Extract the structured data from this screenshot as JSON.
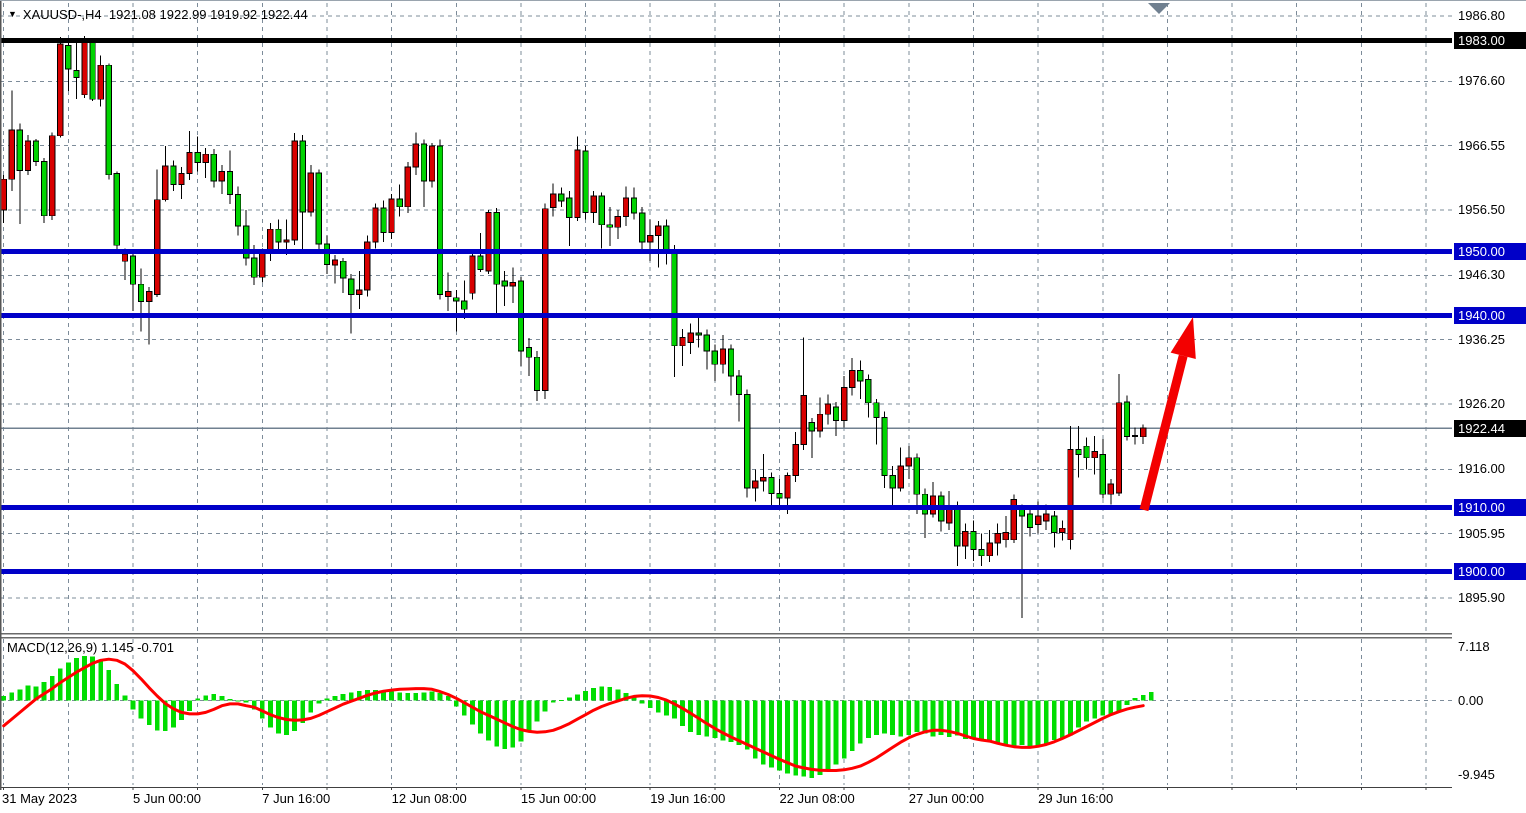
{
  "title": {
    "symbol_period": "XAUUSD-,H4",
    "open": "1921.08",
    "high": "1922.99",
    "low": "1919.92",
    "close": "1922.44"
  },
  "icons": {
    "triangle_down": "▼"
  },
  "macd_panel": {
    "label_name": "MACD(12,26,9)",
    "macd_value": "1.145",
    "signal_value": "-0.701"
  },
  "colors": {
    "background": "#ffffff",
    "grid": "#7d8c9a",
    "candle_up": "#d80000",
    "candle_down": "#00d300",
    "candle_border": "#000000",
    "wick": "#000000",
    "level_blue": "#0000c8",
    "level_black": "#000000",
    "current_price_line": "#708090",
    "badge_black": "#000000",
    "badge_blue": "#0000c8",
    "macd_hist": "#00dd00",
    "macd_signal": "#ff0000",
    "arrow_red": "#f30000",
    "shift_marker": "#708090",
    "frame": "#6a6a6a"
  },
  "price_axis": {
    "ticks": [
      {
        "text": "1986.80",
        "value": 1986.8
      },
      {
        "text": "1976.60",
        "value": 1976.6
      },
      {
        "text": "1966.55",
        "value": 1966.55
      },
      {
        "text": "1956.50",
        "value": 1956.5
      },
      {
        "text": "1946.30",
        "value": 1946.3
      },
      {
        "text": "1936.25",
        "value": 1936.25
      },
      {
        "text": "1926.20",
        "value": 1926.2
      },
      {
        "text": "1916.00",
        "value": 1916.0
      },
      {
        "text": "1905.95",
        "value": 1905.95
      },
      {
        "text": "1895.90",
        "value": 1895.9
      }
    ],
    "badges": [
      {
        "text": "1983.00",
        "value": 1983.0,
        "type": "black"
      },
      {
        "text": "1950.00",
        "value": 1950.0,
        "type": "blue"
      },
      {
        "text": "1940.00",
        "value": 1940.0,
        "type": "blue"
      },
      {
        "text": "1922.44",
        "value": 1922.44,
        "type": "black"
      },
      {
        "text": "1910.00",
        "value": 1910.0,
        "type": "blue"
      },
      {
        "text": "1900.00",
        "value": 1900.0,
        "type": "blue"
      }
    ],
    "macd_ticks": [
      {
        "text": "7.118",
        "value": 7.118
      },
      {
        "text": "0.00",
        "value": 0.0
      },
      {
        "text": "-9.945",
        "value": -9.945
      }
    ]
  },
  "time_axis": {
    "labels": [
      {
        "text": "31 May 2023",
        "grid": 0
      },
      {
        "text": "5 Jun 00:00",
        "grid": 2
      },
      {
        "text": "7 Jun 16:00",
        "grid": 4
      },
      {
        "text": "12 Jun 08:00",
        "grid": 6
      },
      {
        "text": "15 Jun 00:00",
        "grid": 8
      },
      {
        "text": "19 Jun 16:00",
        "grid": 10
      },
      {
        "text": "22 Jun 08:00",
        "grid": 12
      },
      {
        "text": "27 Jun 00:00",
        "grid": 14
      },
      {
        "text": "29 Jun 16:00",
        "grid": 16
      }
    ],
    "grid_count": 23
  },
  "chart_data": {
    "type": "candlestick+macd",
    "symbol": "XAUUSD-",
    "timeframe": "H4",
    "note": "up candles red, down candles green; horizontal support/resistance lines and red projection arrow drawn as objects",
    "price_range_visible": [
      1890.0,
      1988.9
    ],
    "levels": {
      "black_line": 1983.0,
      "blue_lines": [
        1950.0,
        1940.0,
        1910.0,
        1900.0
      ],
      "current_price": 1922.44
    },
    "arrow": {
      "from_price": 1909.5,
      "to_price": 1939.5,
      "color": "#f30000"
    },
    "current_bar": {
      "open": 1921.08,
      "high": 1922.99,
      "low": 1919.92,
      "close": 1922.44
    },
    "candles": [
      [
        1956.5,
        1962.0,
        1954.5,
        1961.3
      ],
      [
        1961.3,
        1975.2,
        1959.5,
        1969.0
      ],
      [
        1969.0,
        1970.0,
        1954.3,
        1962.7
      ],
      [
        1962.7,
        1968.2,
        1962.0,
        1967.3
      ],
      [
        1967.3,
        1967.6,
        1963.4,
        1964.1
      ],
      [
        1964.1,
        1964.6,
        1954.5,
        1955.6
      ],
      [
        1955.6,
        1968.6,
        1954.9,
        1968.1
      ],
      [
        1968.1,
        1983.5,
        1967.8,
        1982.4
      ],
      [
        1982.2,
        1983.0,
        1975.1,
        1978.5
      ],
      [
        1978.3,
        1982.7,
        1973.8,
        1977.2
      ],
      [
        1974.5,
        1983.7,
        1974.0,
        1982.9
      ],
      [
        1982.8,
        1983.2,
        1973.5,
        1973.8
      ],
      [
        1973.8,
        1980.6,
        1972.7,
        1979.1
      ],
      [
        1979.1,
        1979.4,
        1961.3,
        1962.0
      ],
      [
        1962.2,
        1962.5,
        1950.0,
        1951.0
      ],
      [
        1948.5,
        1950.5,
        1945.6,
        1949.6
      ],
      [
        1949.3,
        1949.8,
        1940.7,
        1944.9
      ],
      [
        1944.9,
        1947.4,
        1937.5,
        1942.2
      ],
      [
        1942.2,
        1944.5,
        1935.5,
        1943.8
      ],
      [
        1943.3,
        1962.8,
        1942.9,
        1958.1
      ],
      [
        1958.1,
        1966.5,
        1957.8,
        1963.4
      ],
      [
        1963.4,
        1964.2,
        1959.5,
        1960.5
      ],
      [
        1960.5,
        1963.2,
        1958.2,
        1962.2
      ],
      [
        1962.2,
        1968.8,
        1961.2,
        1965.5
      ],
      [
        1965.5,
        1968.0,
        1962.5,
        1963.9
      ],
      [
        1963.9,
        1966.2,
        1961.5,
        1965.2
      ],
      [
        1965.2,
        1966.0,
        1960.0,
        1961.0
      ],
      [
        1961.0,
        1963.5,
        1959.0,
        1962.5
      ],
      [
        1962.5,
        1965.8,
        1957.4,
        1958.9
      ],
      [
        1958.9,
        1960.2,
        1952.5,
        1954.0
      ],
      [
        1954.0,
        1956.5,
        1947.8,
        1949.0
      ],
      [
        1949.0,
        1951.0,
        1944.8,
        1946.0
      ],
      [
        1946.0,
        1950.5,
        1945.2,
        1949.8
      ],
      [
        1949.8,
        1954.5,
        1948.5,
        1953.5
      ],
      [
        1953.5,
        1955.0,
        1950.0,
        1951.5
      ],
      [
        1951.5,
        1955.0,
        1949.5,
        1951.8
      ],
      [
        1951.8,
        1968.5,
        1951.0,
        1967.3
      ],
      [
        1967.3,
        1968.2,
        1949.8,
        1956.2
      ],
      [
        1956.2,
        1963.5,
        1955.5,
        1962.3
      ],
      [
        1962.3,
        1962.8,
        1950.0,
        1951.2
      ],
      [
        1951.2,
        1952.5,
        1946.5,
        1948.0
      ],
      [
        1947.9,
        1949.5,
        1945.0,
        1948.7
      ],
      [
        1948.5,
        1949.0,
        1943.5,
        1945.9
      ],
      [
        1945.7,
        1946.5,
        1937.2,
        1943.3
      ],
      [
        1943.3,
        1947.0,
        1941.0,
        1944.0
      ],
      [
        1944.0,
        1952.5,
        1943.0,
        1951.5
      ],
      [
        1951.5,
        1957.5,
        1950.5,
        1956.8
      ],
      [
        1956.8,
        1958.0,
        1951.5,
        1953.0
      ],
      [
        1953.0,
        1959.0,
        1952.0,
        1958.2
      ],
      [
        1958.2,
        1960.5,
        1955.5,
        1957.0
      ],
      [
        1957.0,
        1964.0,
        1956.0,
        1963.2
      ],
      [
        1963.2,
        1968.6,
        1962.0,
        1966.8
      ],
      [
        1966.8,
        1967.5,
        1957.0,
        1961.0
      ],
      [
        1961.0,
        1967.0,
        1960.0,
        1966.5
      ],
      [
        1966.5,
        1967.5,
        1942.5,
        1943.3
      ],
      [
        1943.0,
        1946.7,
        1940.7,
        1943.8
      ],
      [
        1942.8,
        1944.0,
        1937.5,
        1942.3
      ],
      [
        1942.3,
        1945.5,
        1939.5,
        1941.0
      ],
      [
        1943.5,
        1950.0,
        1942.5,
        1949.3
      ],
      [
        1949.3,
        1952.9,
        1946.8,
        1947.2
      ],
      [
        1947.0,
        1956.5,
        1946.5,
        1956.1
      ],
      [
        1956.1,
        1956.8,
        1940.2,
        1944.9
      ],
      [
        1945.4,
        1947.0,
        1941.5,
        1944.6
      ],
      [
        1944.6,
        1947.5,
        1942.0,
        1945.2
      ],
      [
        1945.4,
        1946.0,
        1932.1,
        1934.5
      ],
      [
        1935.0,
        1936.5,
        1930.6,
        1933.5
      ],
      [
        1933.5,
        1934.5,
        1926.7,
        1928.3
      ],
      [
        1928.3,
        1957.5,
        1927.0,
        1956.7
      ],
      [
        1956.9,
        1960.6,
        1955.5,
        1959.0
      ],
      [
        1959.0,
        1960.0,
        1957.0,
        1957.9
      ],
      [
        1958.4,
        1959.5,
        1950.9,
        1955.3
      ],
      [
        1955.3,
        1968.0,
        1954.8,
        1965.9
      ],
      [
        1965.7,
        1966.5,
        1955.0,
        1956.1
      ],
      [
        1956.1,
        1959.5,
        1954.5,
        1958.7
      ],
      [
        1958.7,
        1959.2,
        1950.5,
        1954.2
      ],
      [
        1954.2,
        1957.0,
        1950.9,
        1953.8
      ],
      [
        1953.8,
        1956.5,
        1952.0,
        1955.5
      ],
      [
        1955.5,
        1960.2,
        1954.0,
        1958.4
      ],
      [
        1958.4,
        1960.0,
        1955.0,
        1956.0
      ],
      [
        1956.0,
        1957.0,
        1949.6,
        1951.5
      ],
      [
        1951.5,
        1955.0,
        1948.5,
        1952.5
      ],
      [
        1952.5,
        1954.8,
        1947.5,
        1954.0
      ],
      [
        1954.0,
        1955.0,
        1948.0,
        1950.2
      ],
      [
        1950.2,
        1951.0,
        1930.4,
        1935.3
      ],
      [
        1935.3,
        1937.9,
        1932.1,
        1936.6
      ],
      [
        1935.8,
        1938.8,
        1934.0,
        1937.3
      ],
      [
        1937.3,
        1939.8,
        1935.0,
        1937.0
      ],
      [
        1937.0,
        1937.8,
        1931.6,
        1934.5
      ],
      [
        1934.5,
        1935.5,
        1929.8,
        1932.4
      ],
      [
        1932.4,
        1937.0,
        1931.0,
        1934.8
      ],
      [
        1934.8,
        1935.5,
        1927.5,
        1930.6
      ],
      [
        1930.6,
        1931.5,
        1923.5,
        1927.7
      ],
      [
        1927.7,
        1928.5,
        1911.6,
        1913.1
      ],
      [
        1913.1,
        1916.0,
        1911.0,
        1914.2
      ],
      [
        1914.2,
        1918.4,
        1912.5,
        1914.7
      ],
      [
        1914.7,
        1915.5,
        1910.4,
        1912.2
      ],
      [
        1912.2,
        1914.5,
        1909.8,
        1911.5
      ],
      [
        1911.5,
        1915.5,
        1909.0,
        1915.0
      ],
      [
        1915.0,
        1921.8,
        1914.0,
        1919.9
      ],
      [
        1919.9,
        1936.6,
        1919.0,
        1927.5
      ],
      [
        1923.3,
        1924.0,
        1917.8,
        1922.0
      ],
      [
        1922.0,
        1927.2,
        1921.0,
        1924.6
      ],
      [
        1924.6,
        1927.7,
        1923.0,
        1926.2
      ],
      [
        1925.7,
        1926.5,
        1921.2,
        1923.6
      ],
      [
        1923.6,
        1930.6,
        1922.5,
        1928.8
      ],
      [
        1928.8,
        1933.4,
        1927.5,
        1931.4
      ],
      [
        1931.4,
        1933.0,
        1927.0,
        1929.8
      ],
      [
        1930.0,
        1930.8,
        1924.1,
        1926.4
      ],
      [
        1926.4,
        1927.0,
        1919.9,
        1924.1
      ],
      [
        1924.1,
        1925.0,
        1913.1,
        1915.0
      ],
      [
        1915.0,
        1916.5,
        1910.0,
        1913.1
      ],
      [
        1913.1,
        1919.4,
        1912.5,
        1916.5
      ],
      [
        1916.5,
        1919.6,
        1914.5,
        1917.8
      ],
      [
        1917.8,
        1918.5,
        1909.0,
        1912.1
      ],
      [
        1912.1,
        1913.0,
        1905.3,
        1909.0
      ],
      [
        1909.0,
        1914.0,
        1908.5,
        1911.8
      ],
      [
        1911.8,
        1912.5,
        1906.3,
        1907.9
      ],
      [
        1907.6,
        1912.6,
        1906.5,
        1910.2
      ],
      [
        1910.2,
        1911.0,
        1900.9,
        1904.0
      ],
      [
        1904.0,
        1907.5,
        1902.0,
        1906.3
      ],
      [
        1906.3,
        1908.0,
        1901.7,
        1903.5
      ],
      [
        1903.5,
        1906.0,
        1900.9,
        1902.5
      ],
      [
        1902.5,
        1906.5,
        1901.5,
        1904.5
      ],
      [
        1904.5,
        1907.5,
        1902.5,
        1906.0
      ],
      [
        1905.0,
        1908.7,
        1903.8,
        1906.1
      ],
      [
        1905.0,
        1912.1,
        1904.5,
        1911.3
      ],
      [
        1909.7,
        1910.5,
        1892.8,
        1908.7
      ],
      [
        1909.0,
        1909.8,
        1905.5,
        1906.9
      ],
      [
        1907.4,
        1911.0,
        1906.0,
        1908.7
      ],
      [
        1907.9,
        1910.5,
        1906.5,
        1909.0
      ],
      [
        1908.7,
        1909.5,
        1903.8,
        1906.1
      ],
      [
        1906.1,
        1908.0,
        1904.9,
        1906.8
      ],
      [
        1905.0,
        1922.8,
        1903.5,
        1919.1
      ],
      [
        1919.1,
        1922.8,
        1914.7,
        1918.3
      ],
      [
        1919.6,
        1921.0,
        1916.0,
        1917.8
      ],
      [
        1917.8,
        1921.2,
        1915.2,
        1918.8
      ],
      [
        1918.3,
        1920.7,
        1911.4,
        1912.1
      ],
      [
        1912.1,
        1914.5,
        1910.5,
        1913.7
      ],
      [
        1912.3,
        1930.9,
        1911.8,
        1926.4
      ],
      [
        1926.5,
        1927.5,
        1920.5,
        1921.1
      ],
      [
        1921.1,
        1922.5,
        1919.9,
        1921.3
      ],
      [
        1921.08,
        1922.99,
        1919.92,
        1922.44
      ]
    ],
    "macd": {
      "params": "12,26,9",
      "macd_current": 1.145,
      "signal_current": -0.701,
      "axis_range": [
        -9.945,
        7.118
      ],
      "histogram": [
        0.6,
        1.1,
        1.5,
        2.0,
        1.9,
        2.5,
        3.3,
        4.3,
        5.1,
        5.7,
        6.0,
        5.9,
        5.3,
        4.1,
        2.2,
        0.7,
        -1.2,
        -2.4,
        -3.3,
        -4.0,
        -4.1,
        -3.6,
        -2.6,
        -1.4,
        0.3,
        0.7,
        0.9,
        0.6,
        0.2,
        0.0,
        -0.3,
        -1.2,
        -2.4,
        -3.6,
        -4.4,
        -4.6,
        -4.1,
        -3.0,
        -1.6,
        -0.4,
        0.3,
        0.6,
        0.9,
        1.1,
        1.3,
        1.4,
        1.4,
        1.3,
        1.2,
        1.1,
        1.0,
        1.0,
        1.1,
        1.2,
        1.0,
        0.6,
        -0.8,
        -2.0,
        -3.2,
        -4.4,
        -5.4,
        -6.2,
        -6.5,
        -6.3,
        -5.5,
        -4.2,
        -2.8,
        -1.5,
        -0.3,
        0.1,
        0.4,
        0.8,
        1.3,
        1.7,
        1.9,
        1.8,
        1.5,
        1.0,
        0.4,
        -0.4,
        -1.0,
        -1.6,
        -2.0,
        -2.4,
        -3.4,
        -4.2,
        -4.6,
        -4.8,
        -5.0,
        -5.4,
        -5.6,
        -6.0,
        -6.6,
        -7.8,
        -8.6,
        -9.0,
        -9.4,
        -9.8,
        -10.1,
        -10.2,
        -10.4,
        -10.0,
        -9.4,
        -8.6,
        -7.8,
        -6.8,
        -5.8,
        -5.0,
        -4.6,
        -4.4,
        -4.6,
        -4.8,
        -4.6,
        -4.2,
        -4.4,
        -4.8,
        -4.6,
        -4.9,
        -4.7,
        -5.2,
        -5.2,
        -5.4,
        -5.6,
        -5.8,
        -6.0,
        -6.2,
        -6.0,
        -6.3,
        -6.2,
        -5.8,
        -5.3,
        -5.0,
        -4.7,
        -3.6,
        -2.8,
        -2.4,
        -2.0,
        -1.8,
        -1.4,
        -0.6,
        0.35,
        0.75,
        1.145
      ],
      "signal": [
        -3.4,
        -2.5,
        -1.6,
        -0.7,
        0.2,
        0.9,
        1.6,
        2.4,
        3.1,
        3.8,
        4.4,
        5.0,
        5.4,
        5.55,
        5.4,
        4.9,
        4.0,
        2.9,
        1.7,
        0.6,
        -0.4,
        -1.1,
        -1.6,
        -1.8,
        -1.8,
        -1.6,
        -1.2,
        -0.7,
        -0.45,
        -0.45,
        -0.7,
        -0.9,
        -1.4,
        -1.9,
        -2.3,
        -2.55,
        -2.65,
        -2.6,
        -2.4,
        -2.0,
        -1.5,
        -1.0,
        -0.5,
        -0.1,
        0.3,
        0.7,
        1.0,
        1.25,
        1.4,
        1.5,
        1.55,
        1.6,
        1.6,
        1.5,
        1.2,
        0.8,
        0.3,
        -0.3,
        -0.9,
        -1.5,
        -2.0,
        -2.5,
        -3.0,
        -3.5,
        -3.9,
        -4.15,
        -4.25,
        -4.2,
        -4.0,
        -3.6,
        -3.1,
        -2.5,
        -1.9,
        -1.3,
        -0.8,
        -0.4,
        -0.05,
        0.3,
        0.55,
        0.65,
        0.6,
        0.4,
        0.05,
        -0.45,
        -1.05,
        -1.7,
        -2.4,
        -3.1,
        -3.75,
        -4.35,
        -4.9,
        -5.4,
        -5.9,
        -6.4,
        -6.9,
        -7.4,
        -7.9,
        -8.35,
        -8.8,
        -9.05,
        -9.25,
        -9.35,
        -9.4,
        -9.4,
        -9.3,
        -9.1,
        -8.8,
        -8.3,
        -7.7,
        -7.0,
        -6.3,
        -5.6,
        -5.0,
        -4.55,
        -4.2,
        -4.0,
        -4.0,
        -4.15,
        -4.4,
        -4.75,
        -5.1,
        -5.3,
        -5.45,
        -5.75,
        -6.0,
        -6.2,
        -6.3,
        -6.3,
        -6.15,
        -5.9,
        -5.55,
        -5.1,
        -4.6,
        -4.05,
        -3.5,
        -2.95,
        -2.4,
        -1.9,
        -1.5,
        -1.15,
        -0.9,
        -0.701
      ]
    }
  }
}
